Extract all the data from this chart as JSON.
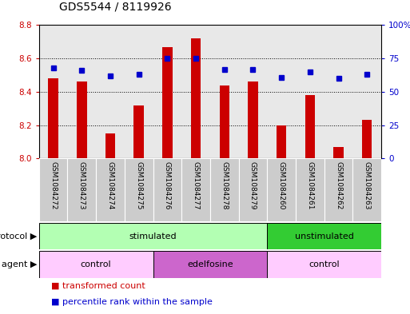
{
  "title": "GDS5544 / 8119926",
  "samples": [
    "GSM1084272",
    "GSM1084273",
    "GSM1084274",
    "GSM1084275",
    "GSM1084276",
    "GSM1084277",
    "GSM1084278",
    "GSM1084279",
    "GSM1084260",
    "GSM1084261",
    "GSM1084262",
    "GSM1084263"
  ],
  "bar_values": [
    8.48,
    8.46,
    8.15,
    8.32,
    8.67,
    8.72,
    8.44,
    8.46,
    8.2,
    8.38,
    8.07,
    8.23
  ],
  "percentile_values": [
    68,
    66,
    62,
    63,
    75,
    75,
    67,
    67,
    61,
    65,
    60,
    63
  ],
  "ylim_left": [
    8.0,
    8.8
  ],
  "ylim_right": [
    0,
    100
  ],
  "yticks_left": [
    8.0,
    8.2,
    8.4,
    8.6,
    8.8
  ],
  "yticks_right": [
    0,
    25,
    50,
    75,
    100
  ],
  "bar_color": "#cc0000",
  "dot_color": "#0000cc",
  "plot_bg": "#e8e8e8",
  "xtick_bg": "#cccccc",
  "protocol_groups": [
    {
      "label": "stimulated",
      "start": 0,
      "end": 7,
      "color": "#b3ffb3"
    },
    {
      "label": "unstimulated",
      "start": 8,
      "end": 11,
      "color": "#33cc33"
    }
  ],
  "agent_groups": [
    {
      "label": "control",
      "start": 0,
      "end": 3,
      "color": "#ffccff"
    },
    {
      "label": "edelfosine",
      "start": 4,
      "end": 7,
      "color": "#cc66cc"
    },
    {
      "label": "control",
      "start": 8,
      "end": 11,
      "color": "#ffccff"
    }
  ],
  "legend_items": [
    {
      "label": "transformed count",
      "color": "#cc0000"
    },
    {
      "label": "percentile rank within the sample",
      "color": "#0000cc"
    }
  ],
  "protocol_label": "protocol",
  "agent_label": "agent",
  "bar_width": 0.35,
  "tick_fontsize": 7.5,
  "label_fontsize": 8,
  "title_fontsize": 10
}
